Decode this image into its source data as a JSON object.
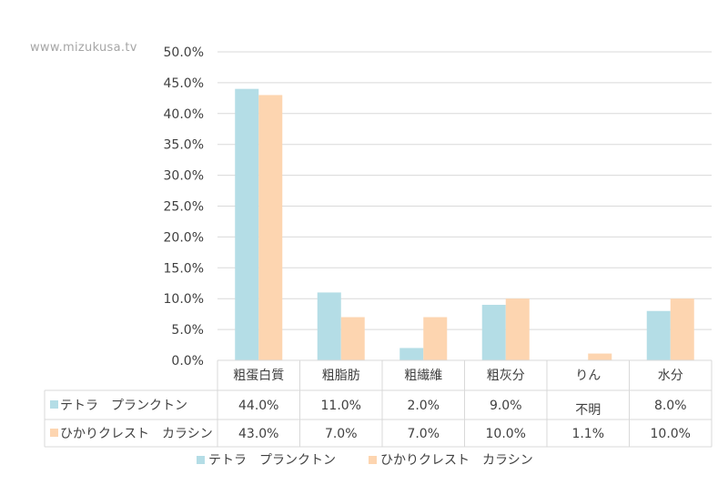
{
  "watermark": "www.mizukusa.tv",
  "colors": {
    "series1": "#b4dde6",
    "series2": "#fdd5b0",
    "grid": "#d9d9d9",
    "table_border": "#d9d9d9",
    "text": "#404040"
  },
  "chart_data": {
    "type": "bar",
    "title": "",
    "xlabel": "",
    "ylabel": "",
    "ylim": [
      0,
      50
    ],
    "yticks": [
      "0.0%",
      "5.0%",
      "10.0%",
      "15.0%",
      "20.0%",
      "25.0%",
      "30.0%",
      "35.0%",
      "40.0%",
      "45.0%",
      "50.0%"
    ],
    "grid": true,
    "legend_position": "bottom",
    "data_table": true,
    "categories": [
      "粗蛋白質",
      "粗脂肪",
      "粗繊維",
      "粗灰分",
      "りん",
      "水分"
    ],
    "series": [
      {
        "name": "テトラ　プランクトン",
        "values": [
          44.0,
          11.0,
          2.0,
          9.0,
          null,
          8.0
        ],
        "table_labels": [
          "44.0%",
          "11.0%",
          "2.0%",
          "9.0%",
          "不明",
          "8.0%"
        ]
      },
      {
        "name": "ひかりクレスト　カラシン",
        "values": [
          43.0,
          7.0,
          7.0,
          10.0,
          1.1,
          10.0
        ],
        "table_labels": [
          "43.0%",
          "7.0%",
          "7.0%",
          "10.0%",
          "1.1%",
          "10.0%"
        ]
      }
    ]
  }
}
